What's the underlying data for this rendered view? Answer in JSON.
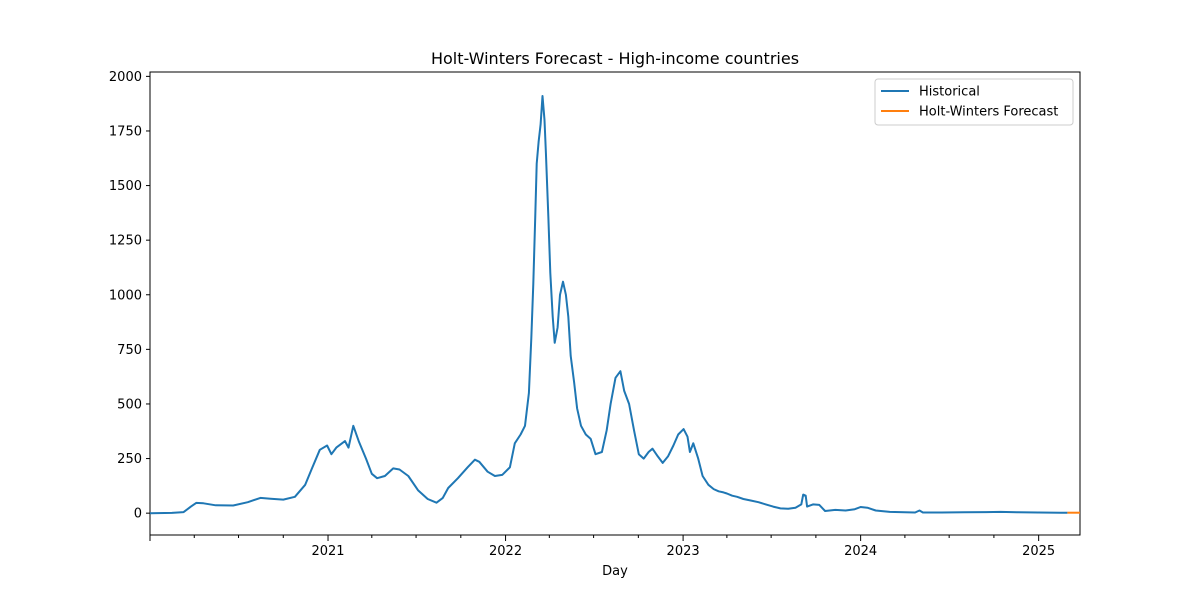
{
  "chart_data": {
    "type": "line",
    "title": "Holt-Winters Forecast - High-income countries",
    "xlabel": "Day",
    "ylabel": "",
    "ylim": [
      -100,
      2020
    ],
    "xlim": [
      "2020-01-01",
      "2025-03-27"
    ],
    "x_ticks": [
      "2021",
      "2022",
      "2023",
      "2024",
      "2025"
    ],
    "y_ticks": [
      0,
      250,
      500,
      750,
      1000,
      1250,
      1500,
      1750,
      2000
    ],
    "legend_position": "top-right",
    "grid": false,
    "colors": {
      "historical": "#1f77b4",
      "forecast": "#ff7f0e"
    },
    "series": [
      {
        "name": "Historical",
        "color": "#1f77b4",
        "points": [
          [
            "2020-01-01",
            0
          ],
          [
            "2020-02-15",
            1
          ],
          [
            "2020-03-10",
            5
          ],
          [
            "2020-03-25",
            30
          ],
          [
            "2020-04-05",
            47
          ],
          [
            "2020-04-20",
            45
          ],
          [
            "2020-05-15",
            36
          ],
          [
            "2020-06-20",
            35
          ],
          [
            "2020-07-20",
            50
          ],
          [
            "2020-08-15",
            70
          ],
          [
            "2020-09-05",
            66
          ],
          [
            "2020-10-01",
            62
          ],
          [
            "2020-10-25",
            75
          ],
          [
            "2020-11-15",
            130
          ],
          [
            "2020-11-28",
            200
          ],
          [
            "2020-12-15",
            290
          ],
          [
            "2020-12-30",
            310
          ],
          [
            "2021-01-08",
            270
          ],
          [
            "2021-01-18",
            300
          ],
          [
            "2021-02-05",
            330
          ],
          [
            "2021-02-12",
            300
          ],
          [
            "2021-02-22",
            400
          ],
          [
            "2021-03-05",
            330
          ],
          [
            "2021-03-20",
            250
          ],
          [
            "2021-04-01",
            180
          ],
          [
            "2021-04-12",
            160
          ],
          [
            "2021-04-28",
            170
          ],
          [
            "2021-05-15",
            205
          ],
          [
            "2021-05-28",
            200
          ],
          [
            "2021-06-15",
            170
          ],
          [
            "2021-07-05",
            105
          ],
          [
            "2021-07-25",
            65
          ],
          [
            "2021-08-12",
            48
          ],
          [
            "2021-08-25",
            70
          ],
          [
            "2021-09-05",
            115
          ],
          [
            "2021-09-25",
            160
          ],
          [
            "2021-10-15",
            210
          ],
          [
            "2021-10-30",
            245
          ],
          [
            "2021-11-08",
            235
          ],
          [
            "2021-11-25",
            190
          ],
          [
            "2021-12-10",
            170
          ],
          [
            "2021-12-25",
            175
          ],
          [
            "2022-01-10",
            210
          ],
          [
            "2022-01-20",
            320
          ],
          [
            "2022-02-01",
            360
          ],
          [
            "2022-02-10",
            400
          ],
          [
            "2022-02-18",
            550
          ],
          [
            "2022-02-23",
            800
          ],
          [
            "2022-02-27",
            1050
          ],
          [
            "2022-03-03",
            1350
          ],
          [
            "2022-03-06",
            1600
          ],
          [
            "2022-03-10",
            1700
          ],
          [
            "2022-03-14",
            1780
          ],
          [
            "2022-03-18",
            1910
          ],
          [
            "2022-03-22",
            1800
          ],
          [
            "2022-03-25",
            1650
          ],
          [
            "2022-03-30",
            1350
          ],
          [
            "2022-04-03",
            1100
          ],
          [
            "2022-04-08",
            900
          ],
          [
            "2022-04-12",
            780
          ],
          [
            "2022-04-18",
            850
          ],
          [
            "2022-04-23",
            1000
          ],
          [
            "2022-04-29",
            1060
          ],
          [
            "2022-05-05",
            1000
          ],
          [
            "2022-05-10",
            900
          ],
          [
            "2022-05-15",
            720
          ],
          [
            "2022-05-22",
            600
          ],
          [
            "2022-05-28",
            480
          ],
          [
            "2022-06-05",
            400
          ],
          [
            "2022-06-15",
            360
          ],
          [
            "2022-06-25",
            340
          ],
          [
            "2022-07-05",
            270
          ],
          [
            "2022-07-18",
            280
          ],
          [
            "2022-07-28",
            380
          ],
          [
            "2022-08-05",
            500
          ],
          [
            "2022-08-15",
            620
          ],
          [
            "2022-08-25",
            650
          ],
          [
            "2022-09-02",
            560
          ],
          [
            "2022-09-12",
            500
          ],
          [
            "2022-09-22",
            380
          ],
          [
            "2022-10-02",
            270
          ],
          [
            "2022-10-12",
            250
          ],
          [
            "2022-10-22",
            280
          ],
          [
            "2022-10-30",
            295
          ],
          [
            "2022-11-10",
            260
          ],
          [
            "2022-11-20",
            230
          ],
          [
            "2022-12-01",
            260
          ],
          [
            "2022-12-12",
            310
          ],
          [
            "2022-12-22",
            360
          ],
          [
            "2023-01-02",
            385
          ],
          [
            "2023-01-10",
            350
          ],
          [
            "2023-01-15",
            280
          ],
          [
            "2023-01-22",
            320
          ],
          [
            "2023-02-01",
            250
          ],
          [
            "2023-02-10",
            170
          ],
          [
            "2023-02-22",
            130
          ],
          [
            "2023-03-05",
            110
          ],
          [
            "2023-03-15",
            100
          ],
          [
            "2023-03-25",
            95
          ],
          [
            "2023-04-01",
            90
          ],
          [
            "2023-04-12",
            80
          ],
          [
            "2023-04-22",
            75
          ],
          [
            "2023-05-05",
            65
          ],
          [
            "2023-05-20",
            58
          ],
          [
            "2023-06-05",
            50
          ],
          [
            "2023-06-20",
            40
          ],
          [
            "2023-07-05",
            30
          ],
          [
            "2023-07-20",
            22
          ],
          [
            "2023-08-05",
            20
          ],
          [
            "2023-08-20",
            25
          ],
          [
            "2023-09-01",
            40
          ],
          [
            "2023-09-05",
            85
          ],
          [
            "2023-09-10",
            80
          ],
          [
            "2023-09-13",
            30
          ],
          [
            "2023-09-25",
            40
          ],
          [
            "2023-10-08",
            38
          ],
          [
            "2023-10-20",
            10
          ],
          [
            "2023-11-10",
            15
          ],
          [
            "2023-12-01",
            12
          ],
          [
            "2023-12-20",
            18
          ],
          [
            "2024-01-01",
            28
          ],
          [
            "2024-01-15",
            25
          ],
          [
            "2024-02-01",
            12
          ],
          [
            "2024-03-01",
            6
          ],
          [
            "2024-04-01",
            4
          ],
          [
            "2024-04-22",
            3
          ],
          [
            "2024-05-01",
            12
          ],
          [
            "2024-05-08",
            3
          ],
          [
            "2024-06-15",
            3
          ],
          [
            "2024-08-01",
            4
          ],
          [
            "2024-09-15",
            5
          ],
          [
            "2024-10-15",
            6
          ],
          [
            "2024-11-20",
            4
          ],
          [
            "2024-12-31",
            3
          ],
          [
            "2025-02-15",
            2
          ],
          [
            "2025-03-01",
            2
          ]
        ]
      },
      {
        "name": "Holt-Winters Forecast",
        "color": "#ff7f0e",
        "points": [
          [
            "2025-03-01",
            2
          ],
          [
            "2025-03-27",
            2
          ]
        ]
      }
    ]
  }
}
